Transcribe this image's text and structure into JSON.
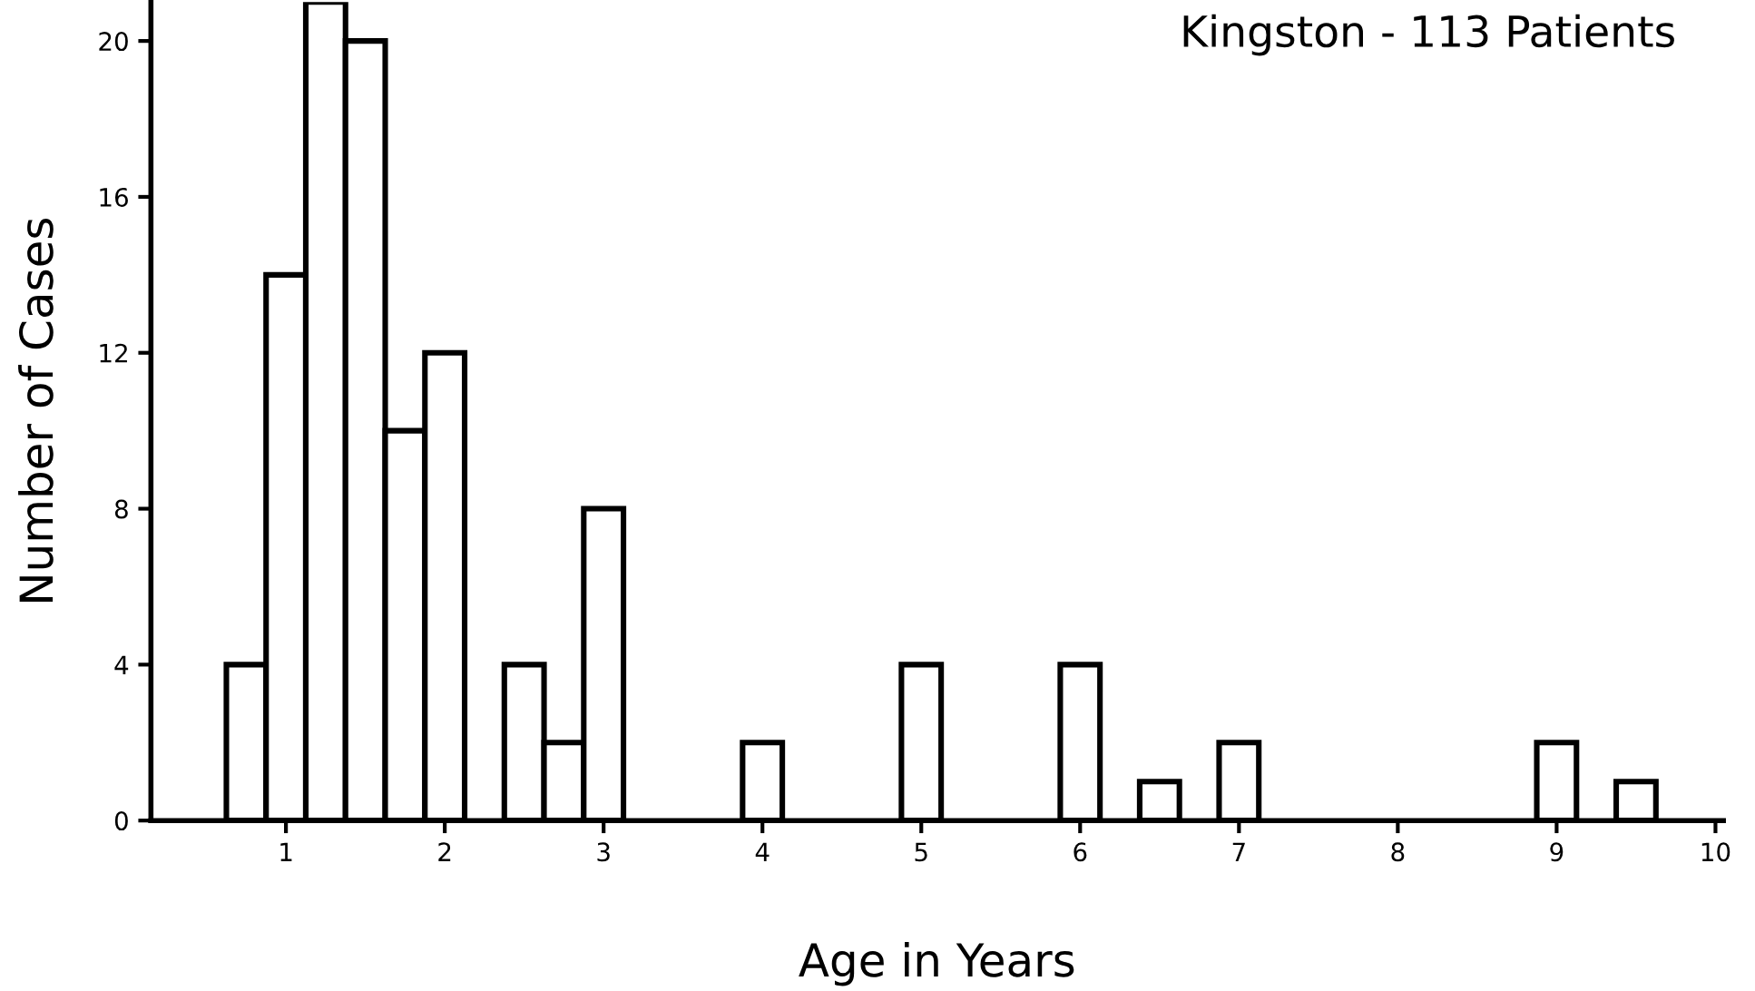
{
  "chart_data": {
    "type": "bar",
    "title": "Kingston - 113 Patients",
    "xlabel": "Age in Years",
    "ylabel": "Number of Cases",
    "x": [
      0.75,
      1.0,
      1.25,
      1.5,
      1.75,
      2.0,
      2.5,
      2.75,
      3.0,
      4.0,
      5.0,
      6.0,
      6.5,
      7.0,
      9.0,
      9.5
    ],
    "values": [
      4,
      14,
      21,
      20,
      10,
      12,
      4,
      2,
      8,
      2,
      4,
      4,
      1,
      2,
      2,
      1
    ],
    "color": "#ffffff",
    "xlim": [
      0.15,
      10.05
    ],
    "xticks": [
      1,
      2,
      3,
      4,
      5,
      6,
      7,
      8,
      9,
      10
    ],
    "ylim": [
      0,
      21
    ],
    "yticks": [
      0,
      4,
      8,
      12,
      16,
      20
    ],
    "grid": false
  }
}
